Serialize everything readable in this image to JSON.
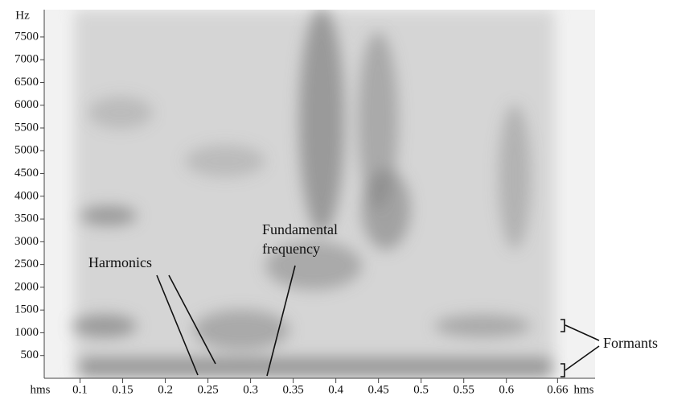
{
  "chart_data": {
    "type": "spectrogram",
    "ylabel": "Hz",
    "xlabel": "hms",
    "xlim": [
      0.058,
      0.704
    ],
    "xticks": [
      0.1,
      0.15,
      0.2,
      0.25,
      0.3,
      0.35,
      0.4,
      0.45,
      0.5,
      0.55,
      0.6,
      0.66
    ],
    "ylim": [
      0,
      8100
    ],
    "yticks": [
      500,
      1000,
      1500,
      2000,
      2500,
      3000,
      3500,
      4000,
      4500,
      5000,
      5500,
      6000,
      6500,
      7000,
      7500
    ],
    "annotations": [
      {
        "text": "Harmonics"
      },
      {
        "lines": [
          "Fundamental",
          "frequency"
        ]
      },
      {
        "text": "Formants"
      }
    ]
  }
}
